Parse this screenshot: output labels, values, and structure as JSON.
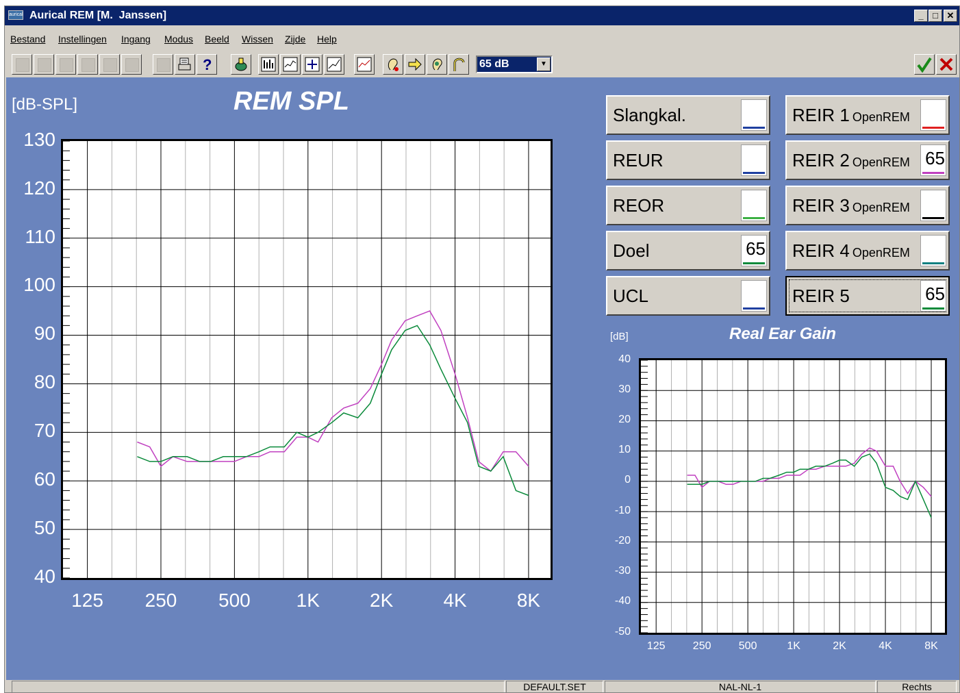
{
  "window": {
    "title": "Aurical REM [M.  Janssen]",
    "app_icon_text": "aurical"
  },
  "menu": [
    "Bestand",
    "Instellingen",
    "Ingang",
    "Modus",
    "Beeld",
    "Wissen",
    "Zijde",
    "Help"
  ],
  "toolbar": {
    "level": "65 dB",
    "icons": [
      "new-icon",
      "open-icon",
      "waveform-icon",
      "record-icon",
      "stop-icon",
      "save-icon",
      "edit-icon",
      "print-icon",
      "help-icon",
      "probe-icon",
      "fft-icon",
      "spectrum-icon",
      "target-icon",
      "gain-icon",
      "view-icon",
      "ear-icon",
      "arrow-icon",
      "ear-tip-icon",
      "hearing-aid-icon"
    ],
    "accept_icon": "checkmark-icon",
    "cancel_icon": "cross-icon"
  },
  "spl_chart": {
    "title": "REM SPL",
    "ylabel": "[dB-SPL]",
    "y_ticks": [
      "130",
      "120",
      "110",
      "100",
      "90",
      "80",
      "70",
      "60",
      "50",
      "40"
    ],
    "x_ticks": [
      "125",
      "250",
      "500",
      "1K",
      "2K",
      "4K",
      "8K"
    ]
  },
  "gain_chart": {
    "title": "Real Ear Gain",
    "ylabel": "[dB]",
    "y_ticks": [
      "40",
      "30",
      "20",
      "10",
      "0",
      "-10",
      "-20",
      "-30",
      "-40",
      "-50"
    ],
    "x_ticks": [
      "125",
      "250",
      "500",
      "1K",
      "2K",
      "4K",
      "8K"
    ]
  },
  "channels_left": [
    {
      "label": "Slangkal.",
      "sub": "",
      "value": "",
      "color": "#1f3fa0"
    },
    {
      "label": "REUR",
      "sub": "",
      "value": "",
      "color": "#1f3fa0"
    },
    {
      "label": "REOR",
      "sub": "",
      "value": "",
      "color": "#3cb043"
    },
    {
      "label": "Doel",
      "sub": "",
      "value": "65",
      "color": "#0a8a3a"
    },
    {
      "label": "UCL",
      "sub": "",
      "value": "",
      "color": "#1f3fa0"
    }
  ],
  "channels_right": [
    {
      "label": "REIR 1",
      "sub": "OpenREM",
      "value": "",
      "color": "#e02020"
    },
    {
      "label": "REIR 2",
      "sub": "OpenREM",
      "value": "65",
      "color": "#c040c0"
    },
    {
      "label": "REIR 3",
      "sub": "OpenREM",
      "value": "",
      "color": "#000000"
    },
    {
      "label": "REIR 4",
      "sub": "OpenREM",
      "value": "",
      "color": "#108080"
    },
    {
      "label": "REIR 5",
      "sub": "",
      "value": "65",
      "color": "#0a8a3a"
    }
  ],
  "status": {
    "settings_file": "DEFAULT.SET",
    "fitting_rule": "NAL-NL-1",
    "side": "Rechts"
  },
  "chart_data": [
    {
      "type": "line",
      "title": "REM SPL",
      "ylabel": "[dB-SPL]",
      "x_scale": "log",
      "xlim": [
        125,
        8000
      ],
      "ylim": [
        40,
        130
      ],
      "x_tick_labels": [
        "125",
        "250",
        "500",
        "1K",
        "2K",
        "4K",
        "8K"
      ],
      "grid": true,
      "series": [
        {
          "color": "#c040c0",
          "x": [
            200,
            225,
            250,
            280,
            320,
            360,
            400,
            450,
            500,
            560,
            630,
            700,
            800,
            900,
            1000,
            1100,
            1250,
            1400,
            1600,
            1800,
            2000,
            2200,
            2500,
            2800,
            3150,
            3500,
            4000,
            4500,
            5000,
            5600,
            6300,
            7100,
            8000
          ],
          "y": [
            68,
            67,
            63,
            65,
            64,
            64,
            64,
            64,
            64,
            65,
            65,
            66,
            66,
            69,
            69,
            68,
            73,
            75,
            76,
            79,
            84,
            89,
            93,
            94,
            95,
            91,
            82,
            73,
            64,
            62,
            66,
            66,
            63
          ]
        },
        {
          "color": "#0a8a3a",
          "x": [
            200,
            225,
            250,
            280,
            320,
            360,
            400,
            450,
            500,
            560,
            630,
            700,
            800,
            900,
            1000,
            1100,
            1250,
            1400,
            1600,
            1800,
            2000,
            2200,
            2500,
            2800,
            3150,
            3500,
            4000,
            4500,
            5000,
            5600,
            6300,
            7100,
            8000
          ],
          "y": [
            65,
            64,
            64,
            65,
            65,
            64,
            64,
            65,
            65,
            65,
            66,
            67,
            67,
            70,
            69,
            70,
            72,
            74,
            73,
            76,
            82,
            87,
            91,
            92,
            88,
            83,
            77,
            72,
            63,
            62,
            65,
            58,
            57
          ]
        }
      ]
    },
    {
      "type": "line",
      "title": "Real Ear Gain",
      "ylabel": "[dB]",
      "x_scale": "log",
      "xlim": [
        125,
        8000
      ],
      "ylim": [
        -50,
        40
      ],
      "x_tick_labels": [
        "125",
        "250",
        "500",
        "1K",
        "2K",
        "4K",
        "8K"
      ],
      "grid": true,
      "series": [
        {
          "color": "#c040c0",
          "x": [
            200,
            225,
            250,
            280,
            320,
            360,
            400,
            450,
            500,
            560,
            630,
            700,
            800,
            900,
            1000,
            1100,
            1250,
            1400,
            1600,
            1800,
            2000,
            2200,
            2500,
            2800,
            3150,
            3500,
            4000,
            4500,
            5000,
            5600,
            6300,
            7100,
            8000
          ],
          "y": [
            2,
            2,
            -2,
            0,
            0,
            -1,
            -1,
            0,
            0,
            0,
            0,
            1,
            1,
            2,
            2,
            2,
            4,
            4,
            5,
            5,
            5,
            5,
            6,
            9,
            11,
            10,
            5,
            5,
            0,
            -4,
            0,
            -2,
            -5
          ]
        },
        {
          "color": "#0a8a3a",
          "x": [
            200,
            225,
            250,
            280,
            320,
            360,
            400,
            450,
            500,
            560,
            630,
            700,
            800,
            900,
            1000,
            1100,
            1250,
            1400,
            1600,
            1800,
            2000,
            2200,
            2500,
            2800,
            3150,
            3500,
            4000,
            4500,
            5000,
            5600,
            6300,
            7100,
            8000
          ],
          "y": [
            -1,
            -1,
            -1,
            0,
            0,
            0,
            0,
            0,
            0,
            0,
            1,
            1,
            2,
            3,
            3,
            4,
            4,
            5,
            5,
            6,
            7,
            7,
            5,
            8,
            9,
            6,
            -2,
            -3,
            -5,
            -6,
            0,
            -6,
            -12
          ]
        }
      ]
    }
  ]
}
